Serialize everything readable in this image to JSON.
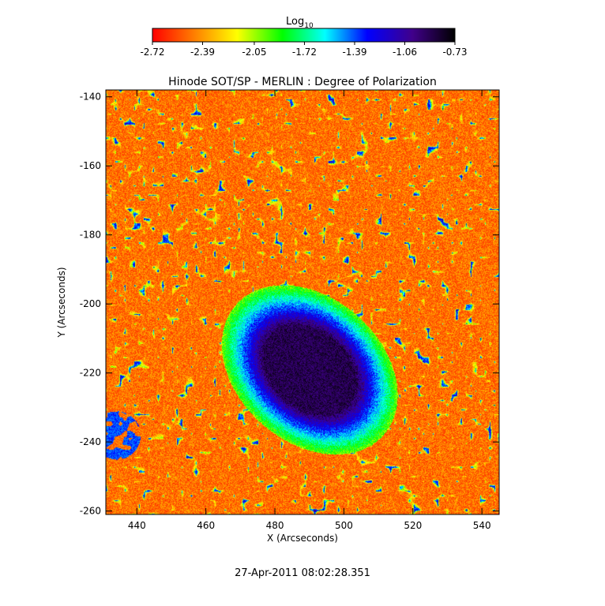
{
  "chart_data": {
    "type": "heatmap",
    "title": "Hinode SOT/SP - MERLIN : Degree of Polarization",
    "xlabel": "X (Arcseconds)",
    "ylabel": "Y (Arcseconds)",
    "timestamp": "27-Apr-2011 08:02:28.351",
    "colorbar": {
      "label_main": "Log",
      "label_sub": "10",
      "ticks": [
        "-2.72",
        "-2.39",
        "-2.05",
        "-1.72",
        "-1.39",
        "-1.06",
        "-0.73"
      ],
      "range": [
        -2.72,
        -0.73
      ],
      "colormap": [
        "#ff0000",
        "#ff8000",
        "#ffff00",
        "#00ff00",
        "#00ffff",
        "#0000ff",
        "#40008a",
        "#000000"
      ]
    },
    "xlim": [
      431,
      545
    ],
    "ylim": [
      -261,
      -138
    ],
    "xticks": [
      "440",
      "460",
      "480",
      "500",
      "520",
      "540"
    ],
    "yticks": [
      "-140",
      "-160",
      "-180",
      "-200",
      "-220",
      "-240",
      "-260"
    ],
    "grid": false,
    "features": {
      "sunspot_center": [
        490,
        -219
      ],
      "umbra_value": -0.85,
      "background_value": -2.65
    }
  }
}
